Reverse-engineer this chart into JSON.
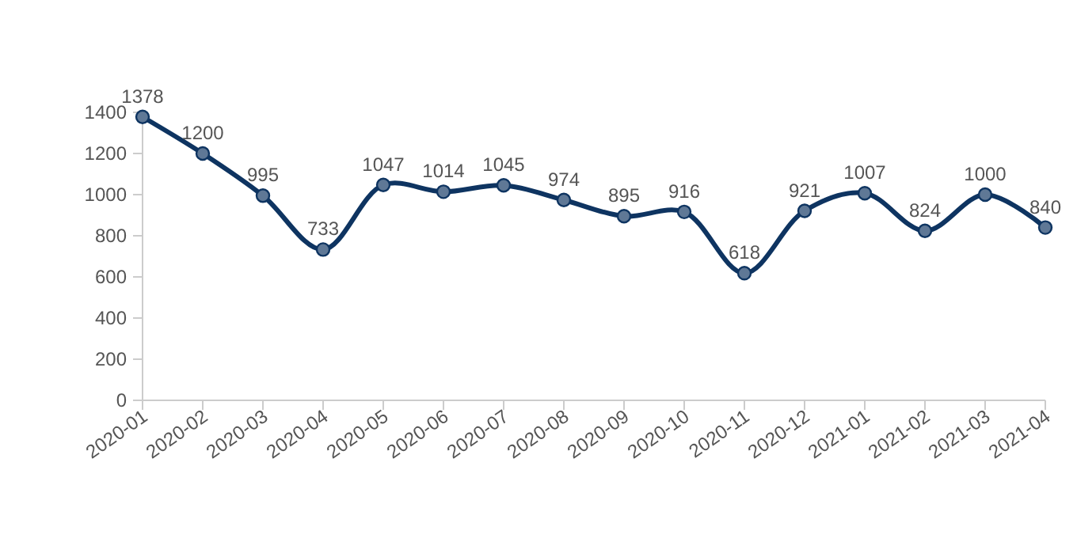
{
  "chart_data": {
    "type": "line",
    "categories": [
      "2020-01",
      "2020-02",
      "2020-03",
      "2020-04",
      "2020-05",
      "2020-06",
      "2020-07",
      "2020-08",
      "2020-09",
      "2020-10",
      "2020-11",
      "2020-12",
      "2021-01",
      "2021-02",
      "2021-03",
      "2021-04"
    ],
    "series": [
      {
        "color": "#0e3461",
        "values": [
          1378,
          1200,
          995,
          733,
          1047,
          1014,
          1045,
          974,
          895,
          916,
          618,
          921,
          1007,
          824,
          1000,
          840
        ]
      }
    ],
    "ylim": [
      0,
      1400
    ],
    "yticks": [
      0,
      200,
      400,
      600,
      800,
      1000,
      1200,
      1400
    ],
    "grid": false,
    "marker": "circle",
    "line_style": "solid",
    "data_labels": true
  }
}
